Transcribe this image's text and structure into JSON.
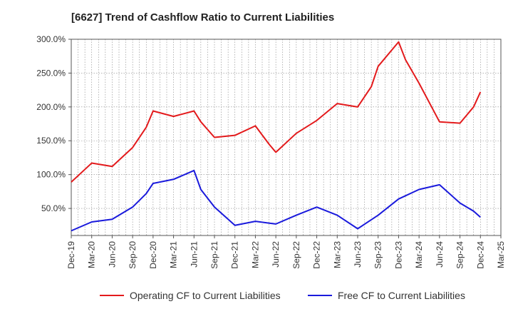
{
  "title": "[6627]  Trend of Cashflow Ratio to Current Liabilities",
  "chart_data": {
    "type": "line",
    "title": "[6627]  Trend of Cashflow Ratio to Current Liabilities",
    "xlabel": "",
    "ylabel": "",
    "ylim": [
      10,
      300
    ],
    "yticks": [
      50,
      100,
      150,
      200,
      250,
      300
    ],
    "ytick_labels": [
      "50.0%",
      "100.0%",
      "150.0%",
      "200.0%",
      "250.0%",
      "300.0%"
    ],
    "categories": [
      "Dec-19",
      "Jan-20",
      "Feb-20",
      "Mar-20",
      "Apr-20",
      "May-20",
      "Jun-20",
      "Jul-20",
      "Aug-20",
      "Sep-20",
      "Oct-20",
      "Nov-20",
      "Dec-20",
      "Jan-21",
      "Feb-21",
      "Mar-21",
      "Apr-21",
      "May-21",
      "Jun-21",
      "Jul-21",
      "Aug-21",
      "Sep-21",
      "Oct-21",
      "Nov-21",
      "Dec-21",
      "Jan-22",
      "Feb-22",
      "Mar-22",
      "Apr-22",
      "May-22",
      "Jun-22",
      "Jul-22",
      "Aug-22",
      "Sep-22",
      "Oct-22",
      "Nov-22",
      "Dec-22",
      "Jan-23",
      "Feb-23",
      "Mar-23",
      "Apr-23",
      "May-23",
      "Jun-23",
      "Jul-23",
      "Aug-23",
      "Sep-23",
      "Oct-23",
      "Nov-23",
      "Dec-23",
      "Jan-24",
      "Feb-24",
      "Mar-24",
      "Apr-24",
      "May-24",
      "Jun-24",
      "Jul-24",
      "Aug-24",
      "Sep-24",
      "Oct-24",
      "Nov-24",
      "Dec-24",
      "Jan-25",
      "Feb-25",
      "Mar-25"
    ],
    "xtick_labels": [
      "Dec-19",
      "Mar-20",
      "Jun-20",
      "Sep-20",
      "Dec-20",
      "Mar-21",
      "Jun-21",
      "Sep-21",
      "Dec-21",
      "Mar-22",
      "Jun-22",
      "Sep-22",
      "Dec-22",
      "Mar-23",
      "Jun-23",
      "Sep-23",
      "Dec-23",
      "Mar-24",
      "Jun-24",
      "Sep-24",
      "Dec-24",
      "Mar-25"
    ],
    "grid": true,
    "legend_position": "bottom",
    "series": [
      {
        "name": "Operating CF to Current Liabilities",
        "color": "#e31a1c",
        "points": [
          [
            "Dec-19",
            89
          ],
          [
            "Mar-20",
            117
          ],
          [
            "Jun-20",
            112
          ],
          [
            "Sep-20",
            140
          ],
          [
            "Nov-20",
            170
          ],
          [
            "Dec-20",
            194
          ],
          [
            "Mar-21",
            186
          ],
          [
            "Jun-21",
            194
          ],
          [
            "Jul-21",
            178
          ],
          [
            "Sep-21",
            155
          ],
          [
            "Dec-21",
            158
          ],
          [
            "Mar-22",
            172
          ],
          [
            "May-22",
            145
          ],
          [
            "Jun-22",
            133
          ],
          [
            "Sep-22",
            161
          ],
          [
            "Dec-22",
            180
          ],
          [
            "Mar-23",
            205
          ],
          [
            "Jun-23",
            200
          ],
          [
            "Aug-23",
            230
          ],
          [
            "Sep-23",
            260
          ],
          [
            "Dec-23",
            296
          ],
          [
            "Jan-24",
            270
          ],
          [
            "Mar-24",
            235
          ],
          [
            "Jun-24",
            178
          ],
          [
            "Sep-24",
            176
          ],
          [
            "Nov-24",
            200
          ],
          [
            "Dec-24",
            222
          ]
        ]
      },
      {
        "name": "Free CF to Current Liabilities",
        "color": "#1a1adc",
        "points": [
          [
            "Dec-19",
            17
          ],
          [
            "Mar-20",
            30
          ],
          [
            "Jun-20",
            34
          ],
          [
            "Sep-20",
            52
          ],
          [
            "Nov-20",
            72
          ],
          [
            "Dec-20",
            87
          ],
          [
            "Mar-21",
            93
          ],
          [
            "Jun-21",
            106
          ],
          [
            "Jul-21",
            78
          ],
          [
            "Sep-21",
            52
          ],
          [
            "Dec-21",
            25
          ],
          [
            "Mar-22",
            31
          ],
          [
            "Jun-22",
            27
          ],
          [
            "Sep-22",
            40
          ],
          [
            "Dec-22",
            52
          ],
          [
            "Mar-23",
            40
          ],
          [
            "Jun-23",
            20
          ],
          [
            "Sep-23",
            40
          ],
          [
            "Dec-23",
            64
          ],
          [
            "Mar-24",
            78
          ],
          [
            "Jun-24",
            85
          ],
          [
            "Sep-24",
            58
          ],
          [
            "Nov-24",
            46
          ],
          [
            "Dec-24",
            37
          ]
        ]
      }
    ]
  }
}
